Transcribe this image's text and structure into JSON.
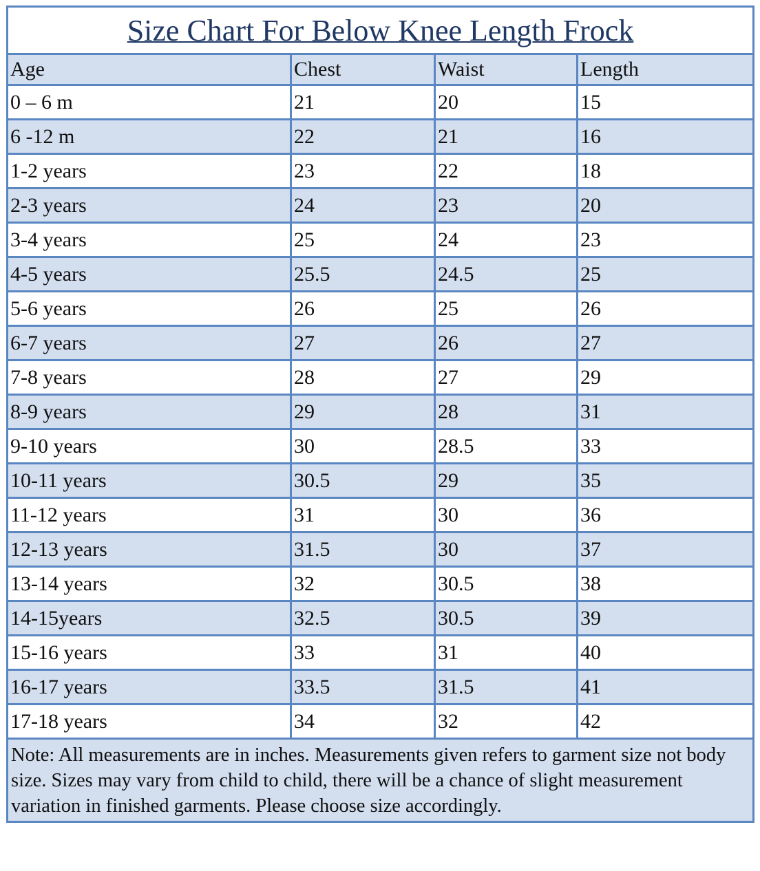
{
  "title": "Size Chart For Below Knee Length Frock",
  "table": {
    "header": [
      "Age",
      "Chest",
      "Waist",
      "Length"
    ],
    "rows": [
      [
        "0 – 6 m",
        21,
        20,
        15
      ],
      [
        "6 -12 m",
        22,
        21,
        16
      ],
      [
        "1-2 years",
        23,
        22,
        18
      ],
      [
        "2-3 years",
        24,
        23,
        20
      ],
      [
        "3-4 years",
        25,
        24,
        23
      ],
      [
        "4-5 years",
        25.5,
        24.5,
        25
      ],
      [
        "5-6 years",
        26,
        25,
        26
      ],
      [
        "6-7 years",
        27,
        26,
        27
      ],
      [
        "7-8 years",
        28,
        27,
        29
      ],
      [
        "8-9 years",
        29,
        28,
        31
      ],
      [
        "9-10 years",
        30,
        28.5,
        33
      ],
      [
        "10-11 years",
        30.5,
        29,
        35
      ],
      [
        "11-12 years",
        31,
        30,
        36
      ],
      [
        "12-13 years",
        31.5,
        30,
        37
      ],
      [
        "13-14 years",
        32,
        30.5,
        38
      ],
      [
        "14-15years",
        32.5,
        30.5,
        39
      ],
      [
        "15-16 years",
        33,
        31,
        40
      ],
      [
        "16-17 years",
        33.5,
        31.5,
        41
      ],
      [
        "17-18 years",
        34,
        32,
        42
      ]
    ]
  },
  "note": "Note: All measurements are in inches. Measurements given refers to garment size not body size. Sizes may vary from child to child, there will be a chance of slight measurement variation in finished garments. Please choose size accordingly."
}
